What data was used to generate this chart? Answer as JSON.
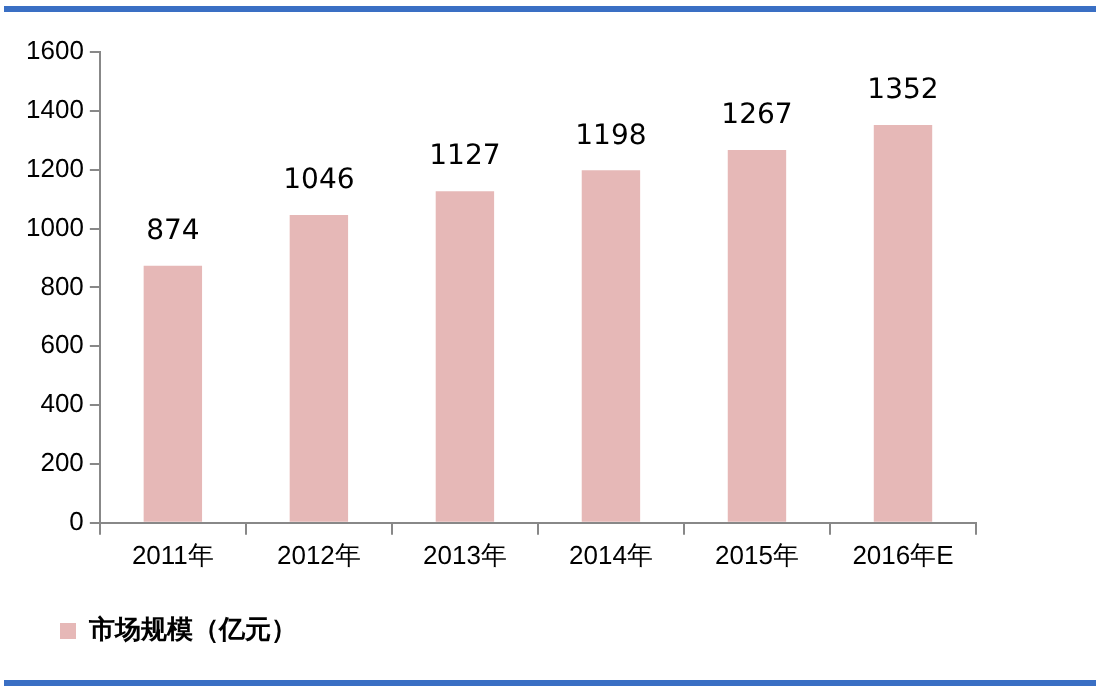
{
  "chart_data": {
    "type": "bar",
    "categories": [
      "2011年",
      "2012年",
      "2013年",
      "2014年",
      "2015年",
      "2016年E"
    ],
    "series": [
      {
        "name": "市场规模（亿元）",
        "color": "#e6b8b7",
        "values": [
          874,
          1046,
          1127,
          1198,
          1267,
          1352
        ]
      }
    ],
    "ylim": [
      0,
      1600
    ],
    "yticks": [
      0,
      200,
      400,
      600,
      800,
      1000,
      1200,
      1400,
      1600
    ],
    "grid": false,
    "legend": "bottom",
    "data_labels": true
  }
}
